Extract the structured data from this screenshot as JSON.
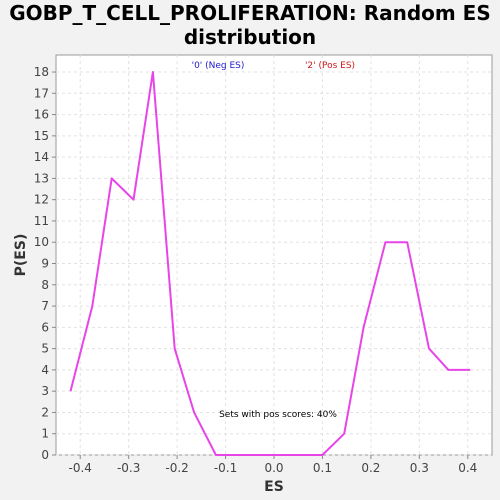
{
  "chart_data": {
    "type": "line",
    "title_line1": "GOBP_T_CELL_PROLIFERATION: Random ES",
    "title_line2": "distribution",
    "xlabel": "ES",
    "ylabel": "P(ES)",
    "xlim": [
      -0.45,
      0.45
    ],
    "ylim": [
      0,
      18.8
    ],
    "x_ticks": [
      -0.4,
      -0.3,
      -0.2,
      -0.1,
      0.0,
      0.1,
      0.2,
      0.3,
      0.4
    ],
    "x_tick_labels": [
      "-0.4",
      "-0.3",
      "-0.2",
      "-0.1",
      "0.0",
      "0.1",
      "0.2",
      "0.3",
      "0.4"
    ],
    "y_ticks": [
      0,
      1,
      2,
      3,
      4,
      5,
      6,
      7,
      8,
      9,
      10,
      11,
      12,
      13,
      14,
      15,
      16,
      17,
      18
    ],
    "y_tick_labels": [
      "0",
      "1",
      "2",
      "3",
      "4",
      "5",
      "6",
      "7",
      "8",
      "9",
      "10",
      "11",
      "12",
      "13",
      "14",
      "15",
      "16",
      "17",
      "18"
    ],
    "grid": true,
    "legend": [
      {
        "label": "'0' (Neg ES)",
        "color": "#1a1acc"
      },
      {
        "label": "'2' (Pos ES)",
        "color": "#cc1a1a"
      }
    ],
    "annotation": "Sets with pos scores: 40%",
    "series": [
      {
        "color": "#e845e8",
        "x": [
          -0.42,
          -0.375,
          -0.335,
          -0.29,
          -0.25,
          -0.205,
          -0.165,
          -0.12,
          -0.08,
          -0.04,
          0.0,
          0.04,
          0.1,
          0.145,
          0.185,
          0.23,
          0.275,
          0.32,
          0.36,
          0.405
        ],
        "y": [
          3,
          7,
          13,
          12,
          18,
          5,
          2,
          0,
          0,
          0,
          0,
          0,
          0,
          1,
          6,
          10,
          10,
          5,
          4,
          4
        ]
      }
    ]
  }
}
